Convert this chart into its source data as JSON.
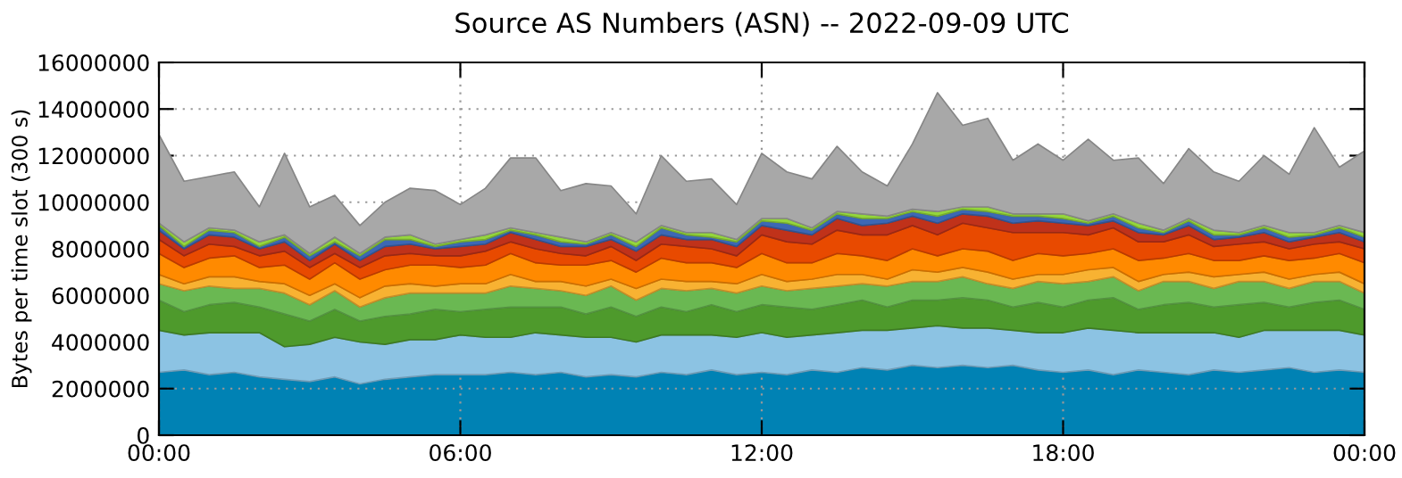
{
  "chart_data": {
    "type": "area",
    "stacked": true,
    "title": "Source AS Numbers (ASN) -- 2022-09-09 UTC",
    "ylabel": "Bytes per time slot (300 s)",
    "x": [
      0,
      0.5,
      1,
      1.5,
      2,
      2.5,
      3,
      3.5,
      4,
      4.5,
      5,
      5.5,
      6,
      6.5,
      7,
      7.5,
      8,
      8.5,
      9,
      9.5,
      10,
      10.5,
      11,
      11.5,
      12,
      12.5,
      13,
      13.5,
      14,
      14.5,
      15,
      15.5,
      16,
      16.5,
      17,
      17.5,
      18,
      18.5,
      19,
      19.5,
      20,
      20.5,
      21,
      21.5,
      22,
      22.5,
      23,
      23.5,
      24
    ],
    "xlim": [
      0,
      24
    ],
    "xticks": [
      {
        "value": 0,
        "label": "00:00"
      },
      {
        "value": 6,
        "label": "06:00"
      },
      {
        "value": 12,
        "label": "12:00"
      },
      {
        "value": 18,
        "label": "18:00"
      },
      {
        "value": 24,
        "label": "00:00"
      }
    ],
    "ylim": [
      0,
      16000000
    ],
    "yticks": [
      0,
      2000000,
      4000000,
      6000000,
      8000000,
      10000000,
      12000000,
      14000000,
      16000000
    ],
    "grid": true,
    "series": [
      {
        "color": "#0082b4",
        "values": [
          2700000,
          2800000,
          2600000,
          2700000,
          2500000,
          2400000,
          2300000,
          2500000,
          2200000,
          2400000,
          2500000,
          2600000,
          2600000,
          2600000,
          2700000,
          2600000,
          2700000,
          2500000,
          2600000,
          2500000,
          2700000,
          2600000,
          2800000,
          2600000,
          2700000,
          2600000,
          2800000,
          2700000,
          2900000,
          2800000,
          3000000,
          2900000,
          3000000,
          2900000,
          3000000,
          2800000,
          2700000,
          2800000,
          2600000,
          2800000,
          2700000,
          2600000,
          2800000,
          2700000,
          2800000,
          2900000,
          2700000,
          2800000,
          2700000
        ]
      },
      {
        "color": "#8cc3e3",
        "values": [
          1800000,
          1500000,
          1800000,
          1700000,
          1900000,
          1400000,
          1600000,
          1700000,
          1800000,
          1500000,
          1600000,
          1500000,
          1700000,
          1600000,
          1500000,
          1800000,
          1600000,
          1700000,
          1600000,
          1500000,
          1600000,
          1700000,
          1500000,
          1600000,
          1700000,
          1600000,
          1500000,
          1700000,
          1600000,
          1700000,
          1600000,
          1800000,
          1600000,
          1700000,
          1500000,
          1600000,
          1700000,
          1800000,
          1900000,
          1600000,
          1700000,
          1800000,
          1600000,
          1500000,
          1700000,
          1600000,
          1800000,
          1700000,
          1600000
        ]
      },
      {
        "color": "#4e9a2c",
        "values": [
          1300000,
          1000000,
          1200000,
          1300000,
          1100000,
          1400000,
          1000000,
          1200000,
          900000,
          1200000,
          1100000,
          1300000,
          1000000,
          1200000,
          1300000,
          1100000,
          1200000,
          1000000,
          1300000,
          1100000,
          1200000,
          1000000,
          1300000,
          1100000,
          1200000,
          1300000,
          1100000,
          1200000,
          1300000,
          1000000,
          1200000,
          1100000,
          1300000,
          1200000,
          1000000,
          1300000,
          1100000,
          1200000,
          1400000,
          1000000,
          1200000,
          1300000,
          1100000,
          1400000,
          1200000,
          1000000,
          1200000,
          1300000,
          1100000
        ]
      },
      {
        "color": "#6ab852",
        "values": [
          700000,
          900000,
          800000,
          600000,
          800000,
          900000,
          700000,
          800000,
          600000,
          800000,
          900000,
          700000,
          800000,
          700000,
          900000,
          800000,
          700000,
          800000,
          900000,
          700000,
          800000,
          900000,
          700000,
          800000,
          800000,
          700000,
          900000,
          800000,
          700000,
          900000,
          800000,
          800000,
          900000,
          700000,
          800000,
          900000,
          1000000,
          800000,
          900000,
          800000,
          1000000,
          900000,
          800000,
          1000000,
          900000,
          800000,
          900000,
          800000,
          700000
        ]
      },
      {
        "color": "#f8b232",
        "values": [
          400000,
          300000,
          400000,
          500000,
          300000,
          400000,
          400000,
          300000,
          400000,
          500000,
          400000,
          300000,
          400000,
          400000,
          500000,
          300000,
          400000,
          400000,
          300000,
          500000,
          400000,
          400000,
          300000,
          400000,
          500000,
          400000,
          400000,
          500000,
          400000,
          300000,
          500000,
          400000,
          400000,
          500000,
          400000,
          300000,
          400000,
          500000,
          400000,
          400000,
          300000,
          400000,
          500000,
          300000,
          400000,
          400000,
          300000,
          400000,
          400000
        ]
      },
      {
        "color": "#ff8a00",
        "values": [
          900000,
          700000,
          800000,
          900000,
          600000,
          800000,
          700000,
          900000,
          800000,
          700000,
          800000,
          900000,
          700000,
          800000,
          900000,
          800000,
          700000,
          900000,
          800000,
          700000,
          900000,
          800000,
          800000,
          700000,
          900000,
          800000,
          700000,
          900000,
          800000,
          800000,
          900000,
          700000,
          800000,
          900000,
          800000,
          900000,
          800000,
          700000,
          800000,
          900000,
          700000,
          800000,
          700000,
          600000,
          700000,
          800000,
          700000,
          800000,
          900000
        ]
      },
      {
        "color": "#e84a00",
        "values": [
          600000,
          500000,
          600000,
          400000,
          500000,
          600000,
          500000,
          400000,
          500000,
          600000,
          500000,
          400000,
          500000,
          600000,
          500000,
          600000,
          500000,
          400000,
          600000,
          500000,
          600000,
          700000,
          600000,
          500000,
          800000,
          900000,
          800000,
          1000000,
          900000,
          1100000,
          1000000,
          900000,
          1100000,
          1000000,
          1200000,
          900000,
          1000000,
          800000,
          900000,
          800000,
          700000,
          800000,
          600000,
          700000,
          600000,
          500000,
          600000,
          500000,
          600000
        ]
      },
      {
        "color": "#c0321a",
        "values": [
          400000,
          300000,
          400000,
          400000,
          300000,
          400000,
          300000,
          400000,
          300000,
          400000,
          400000,
          300000,
          400000,
          300000,
          400000,
          400000,
          300000,
          400000,
          300000,
          400000,
          400000,
          300000,
          400000,
          400000,
          400000,
          500000,
          400000,
          500000,
          400000,
          500000,
          400000,
          500000,
          400000,
          500000,
          400000,
          500000,
          400000,
          400000,
          300000,
          400000,
          300000,
          400000,
          300000,
          300000,
          400000,
          300000,
          300000,
          400000,
          300000
        ]
      },
      {
        "color": "#3c68b4",
        "values": [
          200000,
          100000,
          200000,
          200000,
          100000,
          200000,
          200000,
          100000,
          200000,
          300000,
          200000,
          100000,
          200000,
          200000,
          100000,
          200000,
          200000,
          100000,
          200000,
          200000,
          300000,
          200000,
          100000,
          200000,
          200000,
          300000,
          200000,
          200000,
          300000,
          200000,
          200000,
          300000,
          200000,
          200000,
          300000,
          200000,
          200000,
          100000,
          200000,
          200000,
          100000,
          200000,
          200000,
          100000,
          200000,
          200000,
          100000,
          200000,
          200000
        ]
      },
      {
        "color": "#94d63c",
        "values": [
          100000,
          200000,
          100000,
          100000,
          200000,
          100000,
          100000,
          200000,
          100000,
          100000,
          200000,
          100000,
          100000,
          200000,
          100000,
          100000,
          200000,
          100000,
          100000,
          200000,
          100000,
          100000,
          200000,
          100000,
          100000,
          200000,
          100000,
          100000,
          200000,
          100000,
          100000,
          200000,
          100000,
          200000,
          100000,
          100000,
          200000,
          100000,
          100000,
          200000,
          100000,
          100000,
          200000,
          100000,
          100000,
          200000,
          100000,
          100000,
          200000
        ]
      },
      {
        "color": "#a8a8a8",
        "values": [
          3800000,
          2600000,
          2200000,
          2500000,
          1500000,
          3500000,
          2000000,
          1800000,
          1200000,
          1500000,
          2000000,
          2300000,
          1500000,
          2000000,
          3000000,
          3200000,
          2000000,
          2500000,
          2000000,
          1200000,
          3000000,
          2200000,
          2300000,
          1500000,
          2800000,
          2000000,
          2100000,
          2800000,
          1800000,
          1300000,
          2800000,
          5100000,
          3500000,
          3800000,
          2300000,
          3000000,
          2300000,
          3500000,
          2300000,
          2800000,
          2000000,
          3000000,
          2500000,
          2200000,
          3000000,
          2500000,
          4500000,
          2500000,
          3500000
        ]
      }
    ]
  }
}
